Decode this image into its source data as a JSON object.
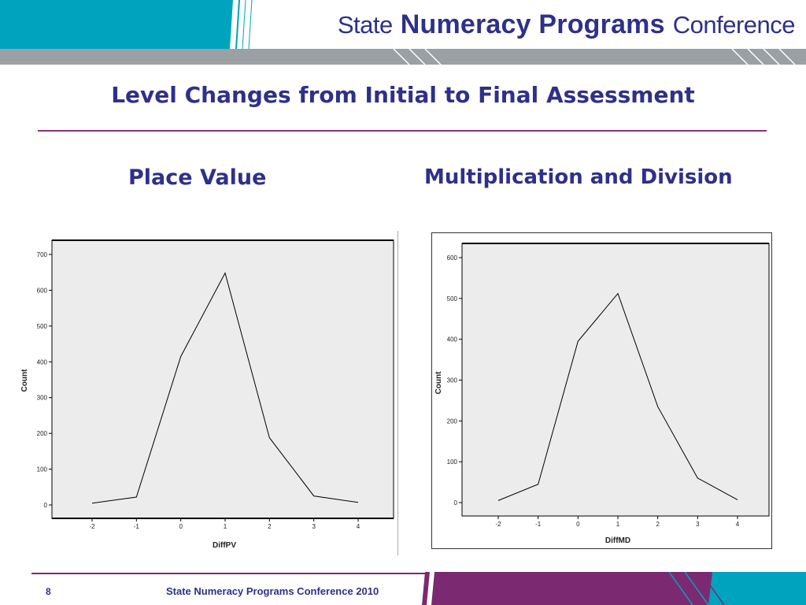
{
  "colors": {
    "brand_navy": "#2e3089",
    "teal": "#00a3bd",
    "purple": "#7b2a72",
    "grey_band": "#9aa0a4",
    "plot_background": "#ececec",
    "line": "#000000"
  },
  "header": {
    "title_part1": "State",
    "title_part2": "Numeracy Programs",
    "title_part3": "Conference"
  },
  "slide": {
    "title": "Level Changes from Initial to Final Assessment",
    "subtitle_left": "Place Value",
    "subtitle_right": "Multiplication and Division"
  },
  "chart_data": [
    {
      "type": "line",
      "x": [
        -2,
        -1,
        0,
        1,
        2,
        3,
        4
      ],
      "y": [
        5,
        22,
        415,
        648,
        188,
        25,
        7
      ],
      "xlabel": "DiffPV",
      "ylabel": "Count",
      "xlim": [
        -2,
        4
      ],
      "ylim": [
        0,
        700
      ],
      "yticks": [
        0,
        100,
        200,
        300,
        400,
        500,
        600,
        700
      ],
      "xticks": [
        -2,
        -1,
        0,
        1,
        2,
        3,
        4
      ],
      "grid": false,
      "legend": "none"
    },
    {
      "type": "line",
      "x": [
        -2,
        -1,
        0,
        1,
        2,
        3,
        4
      ],
      "y": [
        5,
        45,
        395,
        512,
        235,
        60,
        7
      ],
      "xlabel": "DiffMD",
      "ylabel": "Count",
      "xlim": [
        -2,
        4
      ],
      "ylim": [
        0,
        600
      ],
      "yticks": [
        0,
        100,
        200,
        300,
        400,
        500,
        600
      ],
      "xticks": [
        -2,
        -1,
        0,
        1,
        2,
        3,
        4
      ],
      "grid": false,
      "legend": "none"
    }
  ],
  "footer": {
    "page_number": "8",
    "text": "State Numeracy Programs Conference 2010"
  }
}
